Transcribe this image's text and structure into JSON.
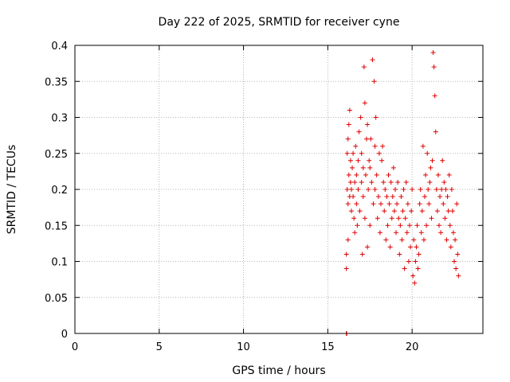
{
  "colors": {
    "series": "#e00000",
    "frame": "#000000",
    "grid": "#a0a0a0"
  },
  "chart_data": {
    "type": "scatter",
    "title": "Day 222 of 2025, SRMTID for receiver cyne",
    "xlabel": "GPS time / hours",
    "ylabel": "SRMTID / TECUs",
    "xlim": [
      0,
      24.2
    ],
    "ylim": [
      0,
      0.4
    ],
    "xticks": [
      0,
      5,
      10,
      15,
      20
    ],
    "xtick_labels": [
      "0",
      "5",
      "10",
      "15",
      "20"
    ],
    "yticks": [
      0,
      0.05,
      0.1,
      0.15,
      0.2,
      0.25,
      0.3,
      0.35,
      0.4
    ],
    "ytick_labels": [
      "0",
      "0.05",
      "0.1",
      "0.15",
      "0.2",
      "0.25",
      "0.3",
      "0.35",
      "0.4"
    ],
    "grid": true,
    "legend": "none",
    "marker": "plus",
    "series": [
      {
        "x": [
          16.1,
          16.1,
          16.15,
          16.15,
          16.2,
          16.2,
          16.2,
          16.25,
          16.25,
          16.3,
          16.3,
          16.35,
          16.35,
          16.4,
          16.4,
          16.45,
          16.5,
          16.5,
          16.55,
          16.6,
          16.6,
          16.65,
          16.7,
          16.7,
          16.75,
          16.8,
          16.8,
          16.85,
          16.9,
          16.95,
          17.0,
          17.0,
          17.05,
          17.1,
          17.1,
          17.15,
          17.2,
          17.2,
          17.25,
          17.3,
          17.35,
          17.35,
          17.4,
          17.45,
          17.5,
          17.5,
          17.55,
          17.6,
          17.65,
          17.7,
          17.75,
          17.8,
          17.8,
          17.85,
          17.9,
          17.95,
          18.0,
          18.05,
          18.1,
          18.15,
          18.2,
          18.25,
          18.3,
          18.35,
          18.4,
          18.45,
          18.5,
          18.55,
          18.6,
          18.65,
          18.7,
          18.75,
          18.8,
          18.85,
          18.9,
          18.95,
          19.0,
          19.05,
          19.1,
          19.15,
          19.2,
          19.25,
          19.3,
          19.35,
          19.4,
          19.45,
          19.5,
          19.55,
          19.6,
          19.65,
          19.7,
          19.75,
          19.8,
          19.85,
          19.9,
          19.95,
          20.0,
          20.05,
          20.1,
          20.15,
          20.2,
          20.25,
          20.3,
          20.35,
          20.4,
          20.45,
          20.5,
          20.55,
          20.6,
          20.65,
          20.7,
          20.75,
          20.8,
          20.85,
          20.9,
          20.95,
          21.0,
          21.05,
          21.1,
          21.15,
          21.2,
          21.25,
          21.3,
          21.35,
          21.4,
          21.45,
          21.5,
          21.55,
          21.6,
          21.65,
          21.7,
          21.75,
          21.8,
          21.85,
          21.9,
          21.95,
          22.0,
          22.05,
          22.1,
          22.15,
          22.2,
          22.25,
          22.3,
          22.35,
          22.4,
          22.45,
          22.5,
          22.55,
          22.6,
          22.65,
          22.7,
          22.75
        ],
        "y": [
          0.09,
          0.11,
          0.2,
          0.25,
          0.18,
          0.27,
          0.13,
          0.29,
          0.22,
          0.31,
          0.19,
          0.24,
          0.21,
          0.2,
          0.17,
          0.23,
          0.19,
          0.25,
          0.16,
          0.21,
          0.14,
          0.26,
          0.18,
          0.22,
          0.15,
          0.24,
          0.2,
          0.28,
          0.17,
          0.3,
          0.21,
          0.25,
          0.11,
          0.19,
          0.23,
          0.37,
          0.16,
          0.32,
          0.22,
          0.27,
          0.12,
          0.29,
          0.2,
          0.24,
          0.15,
          0.23,
          0.27,
          0.21,
          0.38,
          0.18,
          0.35,
          0.26,
          0.2,
          0.3,
          0.22,
          0.16,
          0.19,
          0.25,
          0.14,
          0.18,
          0.24,
          0.26,
          0.21,
          0.17,
          0.2,
          0.13,
          0.19,
          0.15,
          0.22,
          0.18,
          0.12,
          0.21,
          0.16,
          0.19,
          0.23,
          0.17,
          0.2,
          0.14,
          0.18,
          0.21,
          0.16,
          0.11,
          0.15,
          0.19,
          0.13,
          0.17,
          0.2,
          0.09,
          0.16,
          0.21,
          0.14,
          0.18,
          0.1,
          0.15,
          0.12,
          0.17,
          0.2,
          0.08,
          0.13,
          0.07,
          0.1,
          0.12,
          0.15,
          0.09,
          0.11,
          0.18,
          0.2,
          0.14,
          0.17,
          0.26,
          0.13,
          0.19,
          0.22,
          0.15,
          0.25,
          0.2,
          0.18,
          0.21,
          0.23,
          0.16,
          0.24,
          0.39,
          0.37,
          0.33,
          0.28,
          0.2,
          0.17,
          0.22,
          0.15,
          0.19,
          0.14,
          0.2,
          0.24,
          0.18,
          0.21,
          0.16,
          0.2,
          0.13,
          0.19,
          0.17,
          0.22,
          0.15,
          0.12,
          0.2,
          0.17,
          0.14,
          0.1,
          0.13,
          0.09,
          0.18,
          0.11,
          0.08
        ]
      },
      {
        "x": [
          16.1,
          16.12
        ],
        "y": [
          0.0,
          0.0
        ]
      }
    ]
  }
}
